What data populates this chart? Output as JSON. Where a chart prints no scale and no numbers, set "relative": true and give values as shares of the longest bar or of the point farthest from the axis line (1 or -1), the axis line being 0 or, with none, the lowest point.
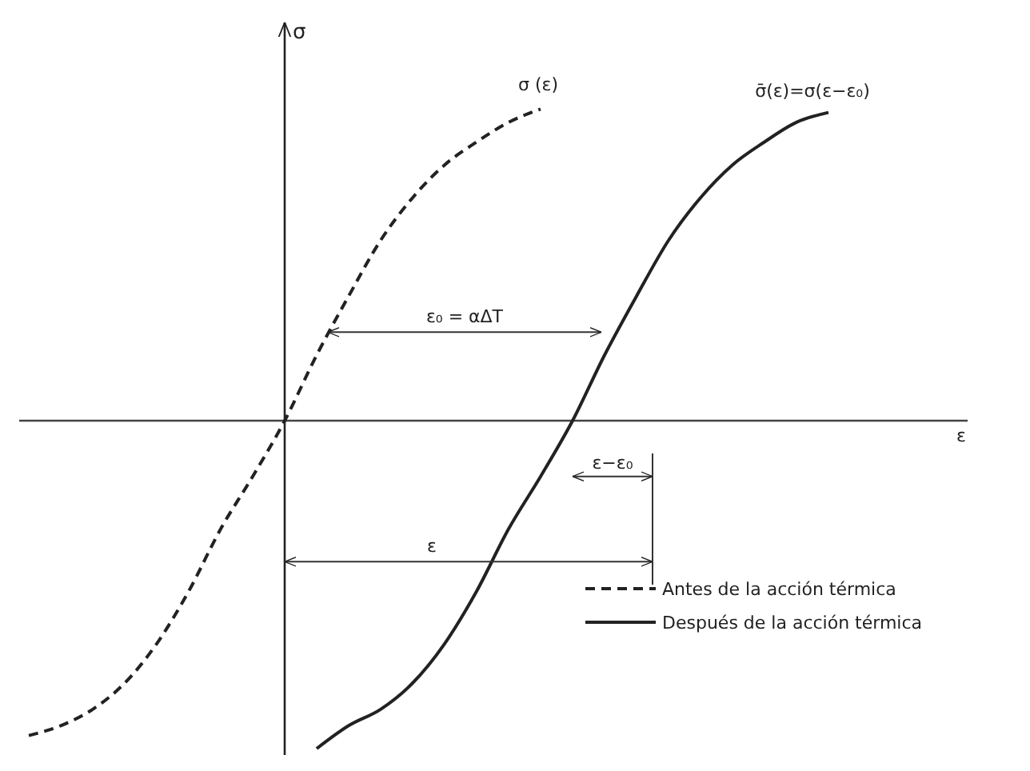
{
  "chart_data": {
    "type": "line",
    "relative": true,
    "ylabel": "σ",
    "tick_labels": false,
    "grid": false,
    "legend": "bottom right",
    "marker": "none",
    "categories": [
      null,
      null,
      null,
      null,
      null,
      null,
      null,
      null,
      null,
      null,
      null,
      null,
      null,
      null,
      null,
      null,
      null,
      null,
      null,
      null,
      null,
      null,
      null,
      null,
      null,
      null
    ],
    "series": [
      {
        "name": "Antes de la acción térmica",
        "color": "#222222",
        "line_style": "dashed",
        "values": [
          -0.96,
          -0.93,
          -0.88,
          -0.8,
          -0.68,
          -0.52,
          -0.33,
          -0.17,
          0,
          0.2,
          0.38,
          0.55,
          0.68,
          0.78,
          0.85,
          0.91,
          0.95,
          null,
          null,
          null,
          null,
          null,
          null,
          null,
          null,
          null
        ]
      },
      {
        "name": "Después de la acción térmica",
        "color": "#222222",
        "line_style": "solid",
        "values": [
          null,
          null,
          null,
          null,
          null,
          null,
          null,
          null,
          null,
          -1,
          -0.93,
          -0.88,
          -0.8,
          -0.68,
          -0.52,
          -0.33,
          -0.17,
          0,
          0.2,
          0.38,
          0.55,
          0.68,
          0.78,
          0.85,
          0.91,
          0.94
        ]
      }
    ],
    "annotations": [
      "σ (ε)",
      "σ̄(ε)=σ(ε−ε₀)",
      "ε₀ = αΔT",
      "ε−ε₀",
      "ε",
      "ε"
    ]
  }
}
